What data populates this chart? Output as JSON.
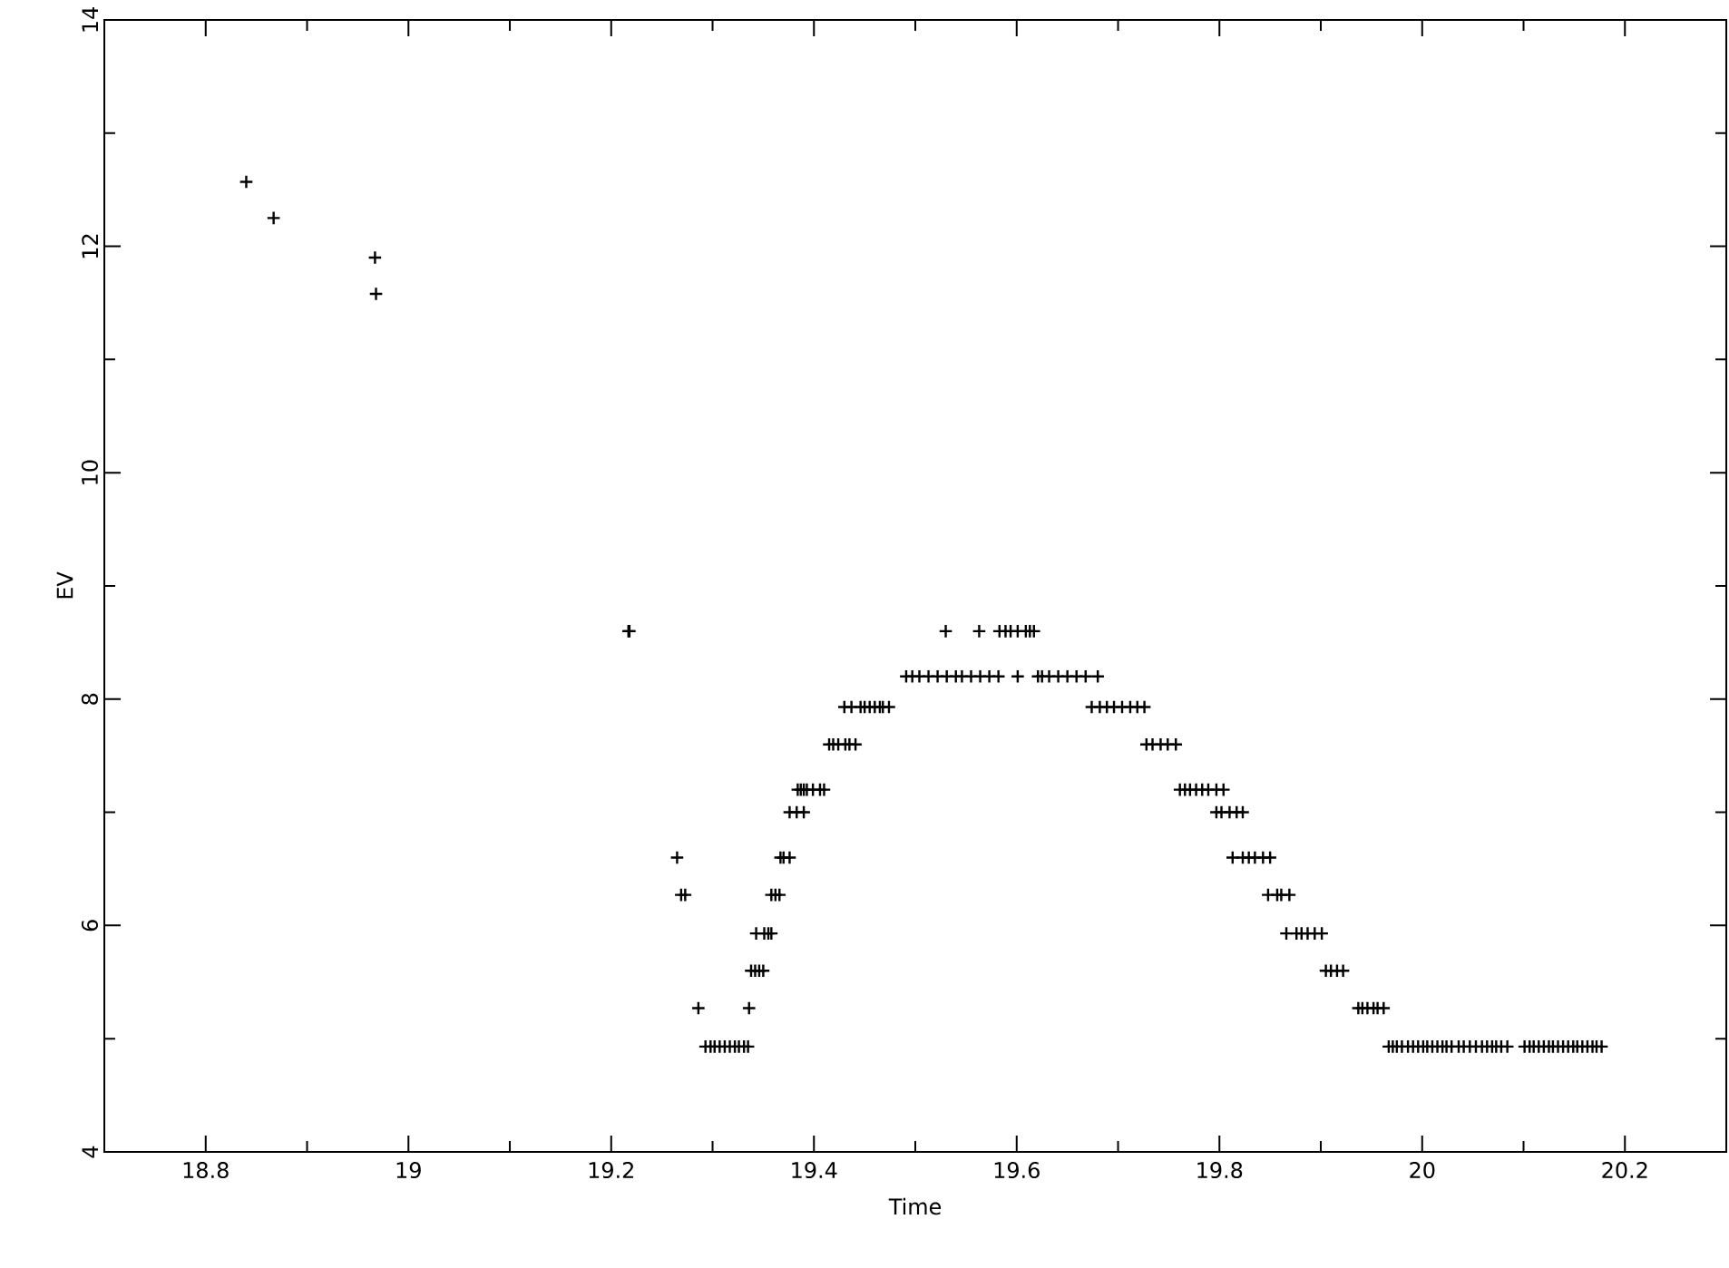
{
  "chart_data": {
    "type": "scatter",
    "xlabel": "Time",
    "ylabel": "EV",
    "marker": "cross",
    "xlim": [
      18.7,
      20.3
    ],
    "ylim": [
      4,
      14
    ],
    "xticks": [
      18.8,
      {
        "value": 18.9,
        "label": null
      },
      19,
      {
        "value": 19.1,
        "label": null
      },
      19.2,
      {
        "value": 19.3,
        "label": null
      },
      19.4,
      {
        "value": 19.5,
        "label": null
      },
      19.6,
      {
        "value": 19.7,
        "label": null
      },
      19.8,
      {
        "value": 19.9,
        "label": null
      },
      20,
      {
        "value": 20.1,
        "label": null
      },
      20.2
    ],
    "yticks": [
      4,
      {
        "value": 5,
        "label": null
      },
      6,
      {
        "value": 7,
        "label": null
      },
      8,
      {
        "value": 9,
        "label": null
      },
      10,
      {
        "value": 11,
        "label": null
      },
      12,
      {
        "value": 13,
        "label": null
      },
      14
    ],
    "series": [
      {
        "color": "#000000",
        "x": [
          18.84,
          18.867,
          18.967,
          18.968,
          19.217,
          19.218,
          19.293,
          19.298,
          19.302,
          19.307,
          19.312,
          19.317,
          19.322,
          19.326,
          19.331,
          19.335,
          19.286,
          19.336,
          19.338,
          19.342,
          19.346,
          19.35,
          19.343,
          19.351,
          19.355,
          19.358,
          19.269,
          19.273,
          19.358,
          19.362,
          19.366,
          19.265,
          19.367,
          19.37,
          19.376,
          19.376,
          19.383,
          19.39,
          19.384,
          19.387,
          19.39,
          19.393,
          19.399,
          19.406,
          19.41,
          19.415,
          19.419,
          19.424,
          19.431,
          19.435,
          19.441,
          19.43,
          19.437,
          19.446,
          19.45,
          19.455,
          19.46,
          19.465,
          19.468,
          19.474,
          19.53,
          19.563,
          19.583,
          19.589,
          19.594,
          19.601,
          19.609,
          19.613,
          19.617,
          19.491,
          19.497,
          19.504,
          19.513,
          19.522,
          19.531,
          19.54,
          19.546,
          19.555,
          19.564,
          19.573,
          19.582,
          19.601,
          19.621,
          19.625,
          19.632,
          19.641,
          19.65,
          19.659,
          19.668,
          19.68,
          19.674,
          19.682,
          19.689,
          19.696,
          19.704,
          19.712,
          19.719,
          19.726,
          19.728,
          19.734,
          19.742,
          19.749,
          19.757,
          19.761,
          19.766,
          19.771,
          19.777,
          19.783,
          19.789,
          19.797,
          19.804,
          19.797,
          19.802,
          19.81,
          19.817,
          19.823,
          19.813,
          19.823,
          19.829,
          19.835,
          19.843,
          19.85,
          19.848,
          19.857,
          19.861,
          19.869,
          19.866,
          19.876,
          19.881,
          19.887,
          19.894,
          19.901,
          19.905,
          19.91,
          19.916,
          19.922,
          19.937,
          19.941,
          19.946,
          19.952,
          19.956,
          19.962,
          19.967,
          19.971,
          19.975,
          19.98,
          19.986,
          19.991,
          19.996,
          20.001,
          20.005,
          20.01,
          20.015,
          20.02,
          20.024,
          20.029,
          20.036,
          20.041,
          20.047,
          20.053,
          20.059,
          20.064,
          20.069,
          20.073,
          20.078,
          20.084,
          20.101,
          20.106,
          20.11,
          20.115,
          20.12,
          20.125,
          20.129,
          20.134,
          20.139,
          20.144,
          20.149,
          20.153,
          20.158,
          20.163,
          20.168,
          20.172,
          20.177
        ],
        "values": [
          12.57,
          12.25,
          11.9,
          11.58,
          8.6,
          8.6,
          4.93,
          4.93,
          4.93,
          4.93,
          4.93,
          4.93,
          4.93,
          4.93,
          4.93,
          4.93,
          5.27,
          5.27,
          5.6,
          5.6,
          5.6,
          5.6,
          5.93,
          5.93,
          5.93,
          5.93,
          6.27,
          6.27,
          6.27,
          6.27,
          6.27,
          6.6,
          6.6,
          6.6,
          6.6,
          7.0,
          7.0,
          7.0,
          7.2,
          7.2,
          7.2,
          7.2,
          7.2,
          7.2,
          7.2,
          7.6,
          7.6,
          7.6,
          7.6,
          7.6,
          7.6,
          7.93,
          7.93,
          7.93,
          7.93,
          7.93,
          7.93,
          7.93,
          7.93,
          7.93,
          8.6,
          8.6,
          8.6,
          8.6,
          8.6,
          8.6,
          8.6,
          8.6,
          8.6,
          8.2,
          8.2,
          8.2,
          8.2,
          8.2,
          8.2,
          8.2,
          8.2,
          8.2,
          8.2,
          8.2,
          8.2,
          8.2,
          8.2,
          8.2,
          8.2,
          8.2,
          8.2,
          8.2,
          8.2,
          8.2,
          7.93,
          7.93,
          7.93,
          7.93,
          7.93,
          7.93,
          7.93,
          7.93,
          7.6,
          7.6,
          7.6,
          7.6,
          7.6,
          7.2,
          7.2,
          7.2,
          7.2,
          7.2,
          7.2,
          7.2,
          7.2,
          7.0,
          7.0,
          7.0,
          7.0,
          7.0,
          6.6,
          6.6,
          6.6,
          6.6,
          6.6,
          6.6,
          6.27,
          6.27,
          6.27,
          6.27,
          5.93,
          5.93,
          5.93,
          5.93,
          5.93,
          5.93,
          5.6,
          5.6,
          5.6,
          5.6,
          5.27,
          5.27,
          5.27,
          5.27,
          5.27,
          5.27,
          4.93,
          4.93,
          4.93,
          4.93,
          4.93,
          4.93,
          4.93,
          4.93,
          4.93,
          4.93,
          4.93,
          4.93,
          4.93,
          4.93,
          4.93,
          4.93,
          4.93,
          4.93,
          4.93,
          4.93,
          4.93,
          4.93,
          4.93,
          4.93,
          4.93,
          4.93,
          4.93,
          4.93,
          4.93,
          4.93,
          4.93,
          4.93,
          4.93,
          4.93,
          4.93,
          4.93,
          4.93,
          4.93,
          4.93,
          4.93,
          4.93
        ]
      }
    ]
  }
}
